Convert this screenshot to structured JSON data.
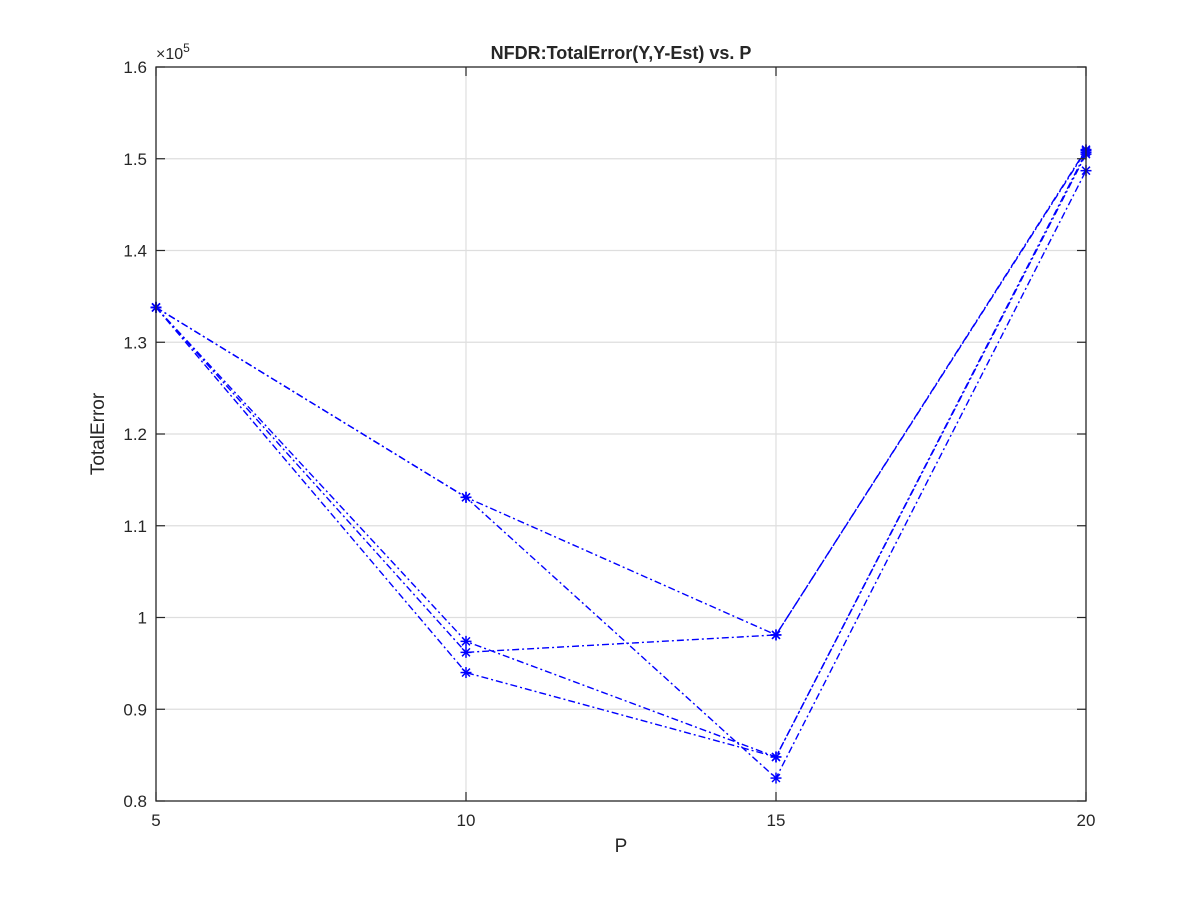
{
  "chart_data": {
    "type": "line",
    "title": "NFDR:TotalError(Y,Y-Est) vs. P",
    "xlabel": "P",
    "ylabel": "TotalError",
    "xlim": [
      5,
      20
    ],
    "ylim": [
      80000,
      160000
    ],
    "x_ticks": [
      5,
      10,
      15,
      20
    ],
    "y_ticks": [
      80000,
      90000,
      100000,
      110000,
      120000,
      130000,
      140000,
      150000,
      160000
    ],
    "y_tick_labels": [
      "0.8",
      "0.9",
      "1",
      "1.1",
      "1.2",
      "1.3",
      "1.4",
      "1.5",
      "1.6"
    ],
    "y_exponent_base": "×10",
    "y_exponent_power": "5",
    "grid": true,
    "line_style": "dash-dot",
    "marker": "asterisk",
    "series_color": "#0000ff",
    "x": [
      5,
      10,
      15,
      20
    ],
    "series": [
      {
        "values": [
          133800,
          113100,
          98100,
          151000
        ]
      },
      {
        "values": [
          133800,
          113100,
          82500,
          148700
        ]
      },
      {
        "values": [
          133800,
          97400,
          84800,
          150700
        ]
      },
      {
        "values": [
          133800,
          96200,
          98100,
          150900
        ]
      },
      {
        "values": [
          133800,
          94000,
          84800,
          150500
        ]
      }
    ]
  }
}
